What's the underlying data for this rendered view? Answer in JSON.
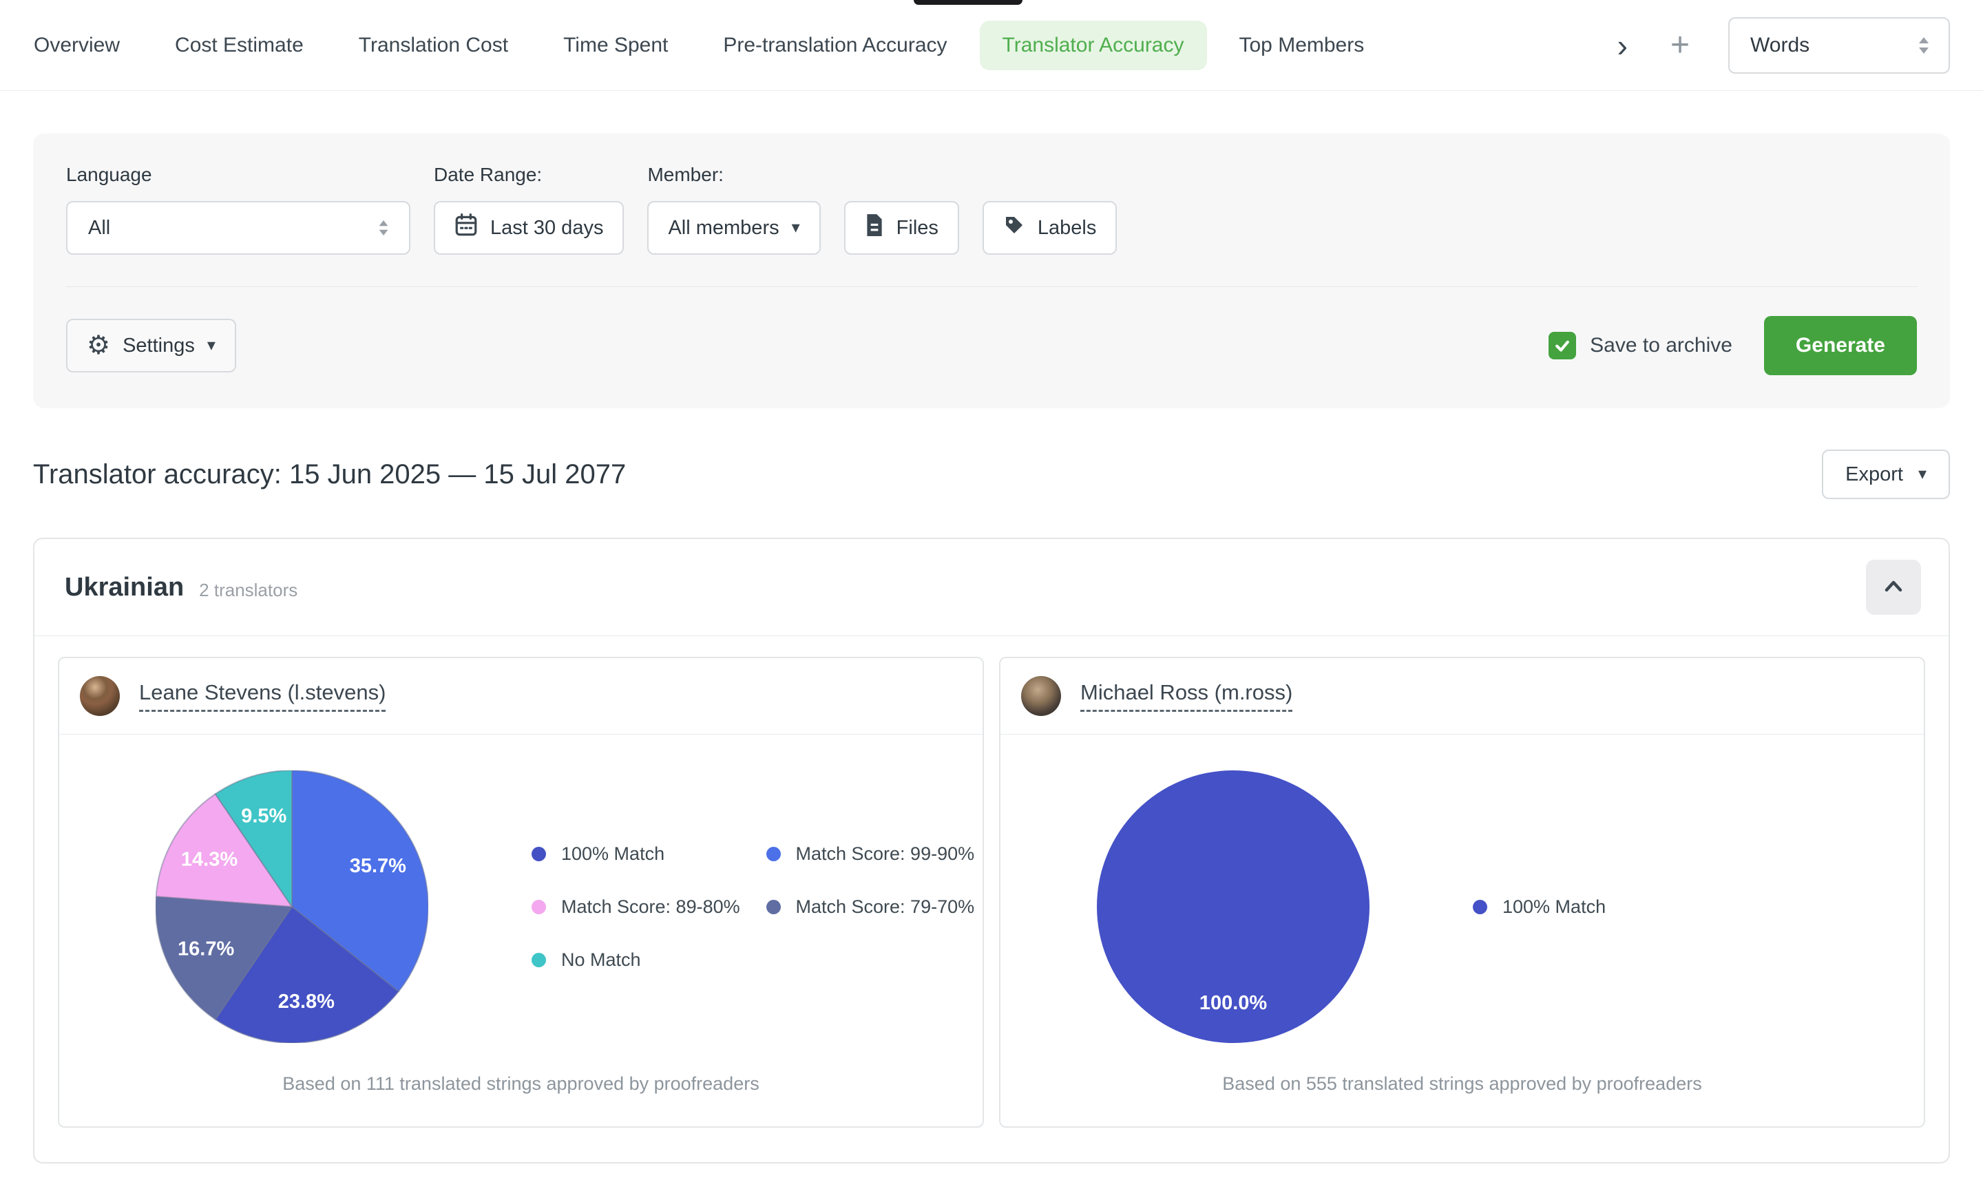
{
  "colors": {
    "accent_green": "#44a33e",
    "active_tab_bg": "#e7f5e4",
    "active_tab_text": "#4fae4e",
    "checkbox_green": "#44a33e"
  },
  "icons": {
    "chevron_right": "›",
    "plus": "+",
    "caret_down": "▾",
    "settings_gear": "⚙"
  },
  "tabs": {
    "items": [
      {
        "label": "Overview",
        "active": false
      },
      {
        "label": "Cost Estimate",
        "active": false
      },
      {
        "label": "Translation Cost",
        "active": false
      },
      {
        "label": "Time Spent",
        "active": false
      },
      {
        "label": "Pre-translation Accuracy",
        "active": false
      },
      {
        "label": "Translator Accuracy",
        "active": true
      },
      {
        "label": "Top Members",
        "active": false
      }
    ],
    "unit_select_value": "Words"
  },
  "filters": {
    "language_label": "Language",
    "language_value": "All",
    "date_range_label": "Date Range:",
    "date_range_value": "Last 30 days",
    "member_label": "Member:",
    "member_value": "All members",
    "files_label": "Files",
    "labels_label": "Labels",
    "settings_label": "Settings",
    "save_to_archive_label": "Save to archive",
    "save_to_archive_checked": true,
    "generate_label": "Generate"
  },
  "report": {
    "title": "Translator accuracy: 15 Jun 2025 — 15 Jul 2077",
    "export_label": "Export"
  },
  "section": {
    "language": "Ukrainian",
    "translators_count": "2 translators"
  },
  "chart_data": [
    {
      "type": "pie",
      "translator": "Leane Stevens (l.stevens)",
      "strings_approved": 111,
      "footnote": "Based on 111 translated strings approved by proofreaders",
      "slices": [
        {
          "label": "Match Score: 99-90%",
          "value": 35.7,
          "display": "35.7%",
          "color": "#4C70E8"
        },
        {
          "label": "100% Match",
          "value": 23.8,
          "display": "23.8%",
          "color": "#4351C4"
        },
        {
          "label": "Match Score: 79-70%",
          "value": 16.7,
          "display": "16.7%",
          "color": "#5F6DA3"
        },
        {
          "label": "Match Score: 89-80%",
          "value": 14.3,
          "display": "14.3%",
          "color": "#F3A8EF"
        },
        {
          "label": "No Match",
          "value": 9.5,
          "display": "9.5%",
          "color": "#3FC5C7"
        }
      ],
      "legend": [
        {
          "label": "100% Match",
          "color": "#4351C4"
        },
        {
          "label": "Match Score: 99-90%",
          "color": "#4C70E8"
        },
        {
          "label": "Match Score: 89-80%",
          "color": "#F3A8EF"
        },
        {
          "label": "Match Score: 79-70%",
          "color": "#5F6DA3"
        },
        {
          "label": "No Match",
          "color": "#3FC5C7"
        }
      ]
    },
    {
      "type": "pie",
      "translator": "Michael Ross (m.ross)",
      "strings_approved": 555,
      "footnote": "Based on 555 translated strings approved by proofreaders",
      "slices": [
        {
          "label": "100% Match",
          "value": 100.0,
          "display": "100.0%",
          "color": "#4551C6"
        }
      ],
      "legend": [
        {
          "label": "100% Match",
          "color": "#4551C6"
        }
      ]
    }
  ]
}
